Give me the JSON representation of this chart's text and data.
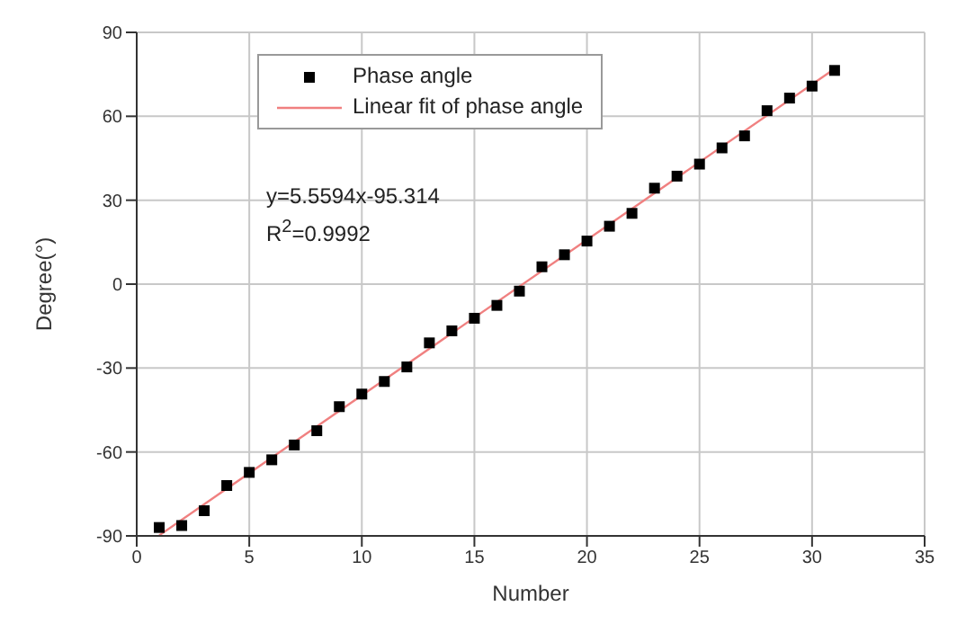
{
  "chart_data": {
    "type": "scatter",
    "xlabel": "Number",
    "ylabel": "Degree(°)",
    "annotations": [
      "y=5.5594x-95.314",
      "R$^{2}$=0.9992"
    ],
    "x": [
      1,
      2,
      3,
      4,
      5,
      6,
      7,
      8,
      9,
      10,
      11,
      12,
      13,
      14,
      15,
      16,
      17,
      18,
      19,
      20,
      21,
      22,
      23,
      24,
      25,
      26,
      27,
      28,
      29,
      30,
      31
    ],
    "series": [
      {
        "name": "Phase angle",
        "type": "scatter",
        "marker": "square",
        "color": "#000000",
        "values": [
          -87.0,
          -86.3,
          -81.0,
          -72.0,
          -67.3,
          -62.8,
          -57.5,
          -52.4,
          -43.8,
          -39.3,
          -34.8,
          -29.6,
          -21.0,
          -16.7,
          -12.2,
          -7.6,
          -2.5,
          6.2,
          10.5,
          15.4,
          20.7,
          25.3,
          34.3,
          38.6,
          42.9,
          48.7,
          53.0,
          62.0,
          66.5,
          70.8,
          76.4
        ]
      },
      {
        "name": "Linear fit of phase angle",
        "type": "line",
        "marker": "none",
        "color": "#f08080",
        "x": [
          1,
          31
        ],
        "values": [
          -89.8,
          77.0
        ]
      }
    ],
    "line_style": "solid",
    "xlim": [
      0,
      35
    ],
    "xticks": [
      0,
      5,
      10,
      15,
      20,
      25,
      30,
      35
    ],
    "ylim": [
      -90,
      90
    ],
    "yticks": [
      -90,
      -60,
      -30,
      0,
      30,
      60,
      90
    ],
    "grid": true,
    "legend": "top left"
  }
}
